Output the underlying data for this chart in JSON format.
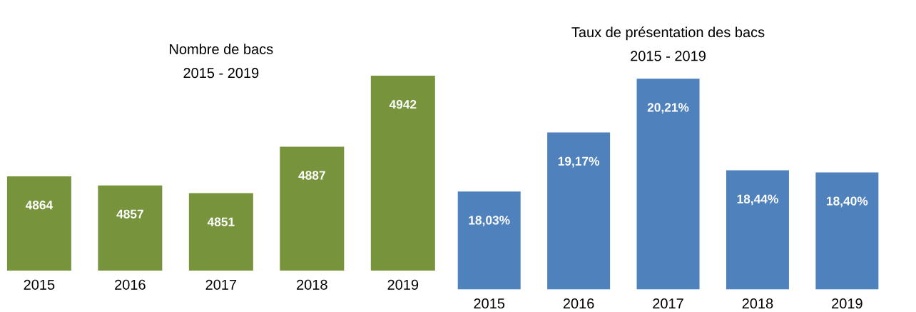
{
  "chart_data": [
    {
      "type": "bar",
      "title": "Nombre de bacs",
      "subtitle": "2015 - 2019",
      "categories": [
        "2015",
        "2016",
        "2017",
        "2018",
        "2019"
      ],
      "values": [
        4864,
        4857,
        4851,
        4887,
        4942
      ],
      "color": "#77933c",
      "ylim": [
        4791,
        4942
      ],
      "data_labels": true,
      "tick_labels": "x"
    },
    {
      "type": "bar",
      "title": "Taux de présentation des bacs",
      "subtitle": "2015 - 2019",
      "categories": [
        "2015",
        "2016",
        "2017",
        "2018",
        "2019"
      ],
      "values": [
        18.03,
        19.17,
        20.21,
        18.44,
        18.4
      ],
      "value_labels": [
        "18,03%",
        "19,17%",
        "20,21%",
        "18,44%",
        "18,40%"
      ],
      "color": "#4f81bd",
      "ylim": [
        16.14,
        20.21
      ],
      "tick_labels": "x"
    }
  ]
}
